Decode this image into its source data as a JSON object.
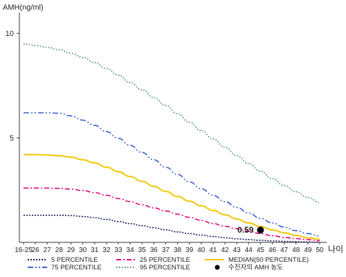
{
  "chart_data": {
    "type": "line",
    "ylabel": "AMH(ng/ml)",
    "xlabel": "나이",
    "ylim": [
      0,
      11
    ],
    "yticks": [
      5,
      10
    ],
    "categories": [
      "16-25",
      "26",
      "27",
      "28",
      "29",
      "30",
      "31",
      "32",
      "33",
      "34",
      "35",
      "36",
      "37",
      "38",
      "39",
      "40",
      "41",
      "42",
      "43",
      "44",
      "45",
      "46",
      "47",
      "48",
      "49",
      "50"
    ],
    "series": [
      {
        "name": "5 PERCENTILE",
        "color": "#0d1a5c",
        "dash": "2,2",
        "values": [
          1.3,
          1.3,
          1.3,
          1.3,
          1.28,
          1.24,
          1.18,
          1.1,
          1.0,
          0.9,
          0.8,
          0.7,
          0.6,
          0.5,
          0.42,
          0.35,
          0.28,
          0.22,
          0.17,
          0.13,
          0.1,
          0.07,
          0.05,
          0.03,
          0.02,
          0.0
        ]
      },
      {
        "name": "25 PERCENTILE",
        "color": "#e0007a",
        "dash": "7,3,2,3",
        "values": [
          2.6,
          2.6,
          2.6,
          2.58,
          2.55,
          2.48,
          2.38,
          2.25,
          2.1,
          1.95,
          1.8,
          1.65,
          1.5,
          1.35,
          1.2,
          1.05,
          0.9,
          0.77,
          0.65,
          0.53,
          0.42,
          0.32,
          0.24,
          0.18,
          0.13,
          0.08
        ]
      },
      {
        "name": "MEDIAN(50 PERCENTILE)",
        "color": "#f2c600",
        "dash": "",
        "values": [
          4.2,
          4.2,
          4.18,
          4.15,
          4.08,
          3.95,
          3.8,
          3.6,
          3.38,
          3.15,
          2.92,
          2.68,
          2.44,
          2.2,
          1.97,
          1.75,
          1.53,
          1.32,
          1.12,
          0.93,
          0.76,
          0.6,
          0.46,
          0.33,
          0.22,
          0.15
        ]
      },
      {
        "name": "75 PERCENTILE",
        "color": "#3a5fcd",
        "dash": "8,3,2,3,2,3",
        "values": [
          6.2,
          6.2,
          6.2,
          6.18,
          6.05,
          5.85,
          5.6,
          5.3,
          4.98,
          4.64,
          4.3,
          3.95,
          3.6,
          3.25,
          2.9,
          2.57,
          2.25,
          1.95,
          1.67,
          1.4,
          1.15,
          0.93,
          0.73,
          0.56,
          0.42,
          0.3
        ]
      },
      {
        "name": "95 PERCENTILE",
        "color": "#2e8b57",
        "dash": "1.5,2.5",
        "values": [
          9.5,
          9.42,
          9.33,
          9.22,
          9.05,
          8.85,
          8.6,
          8.32,
          8.0,
          7.65,
          7.3,
          6.93,
          6.55,
          6.15,
          5.75,
          5.35,
          4.95,
          4.55,
          4.15,
          3.77,
          3.4,
          3.05,
          2.72,
          2.42,
          2.15,
          1.9
        ]
      }
    ],
    "highlight": {
      "name": "수진자의 AMH 농도",
      "x": "45",
      "y": 0.59,
      "label": "0.59",
      "color": "#000000"
    },
    "legend_placement": "bottom",
    "grid": false
  }
}
